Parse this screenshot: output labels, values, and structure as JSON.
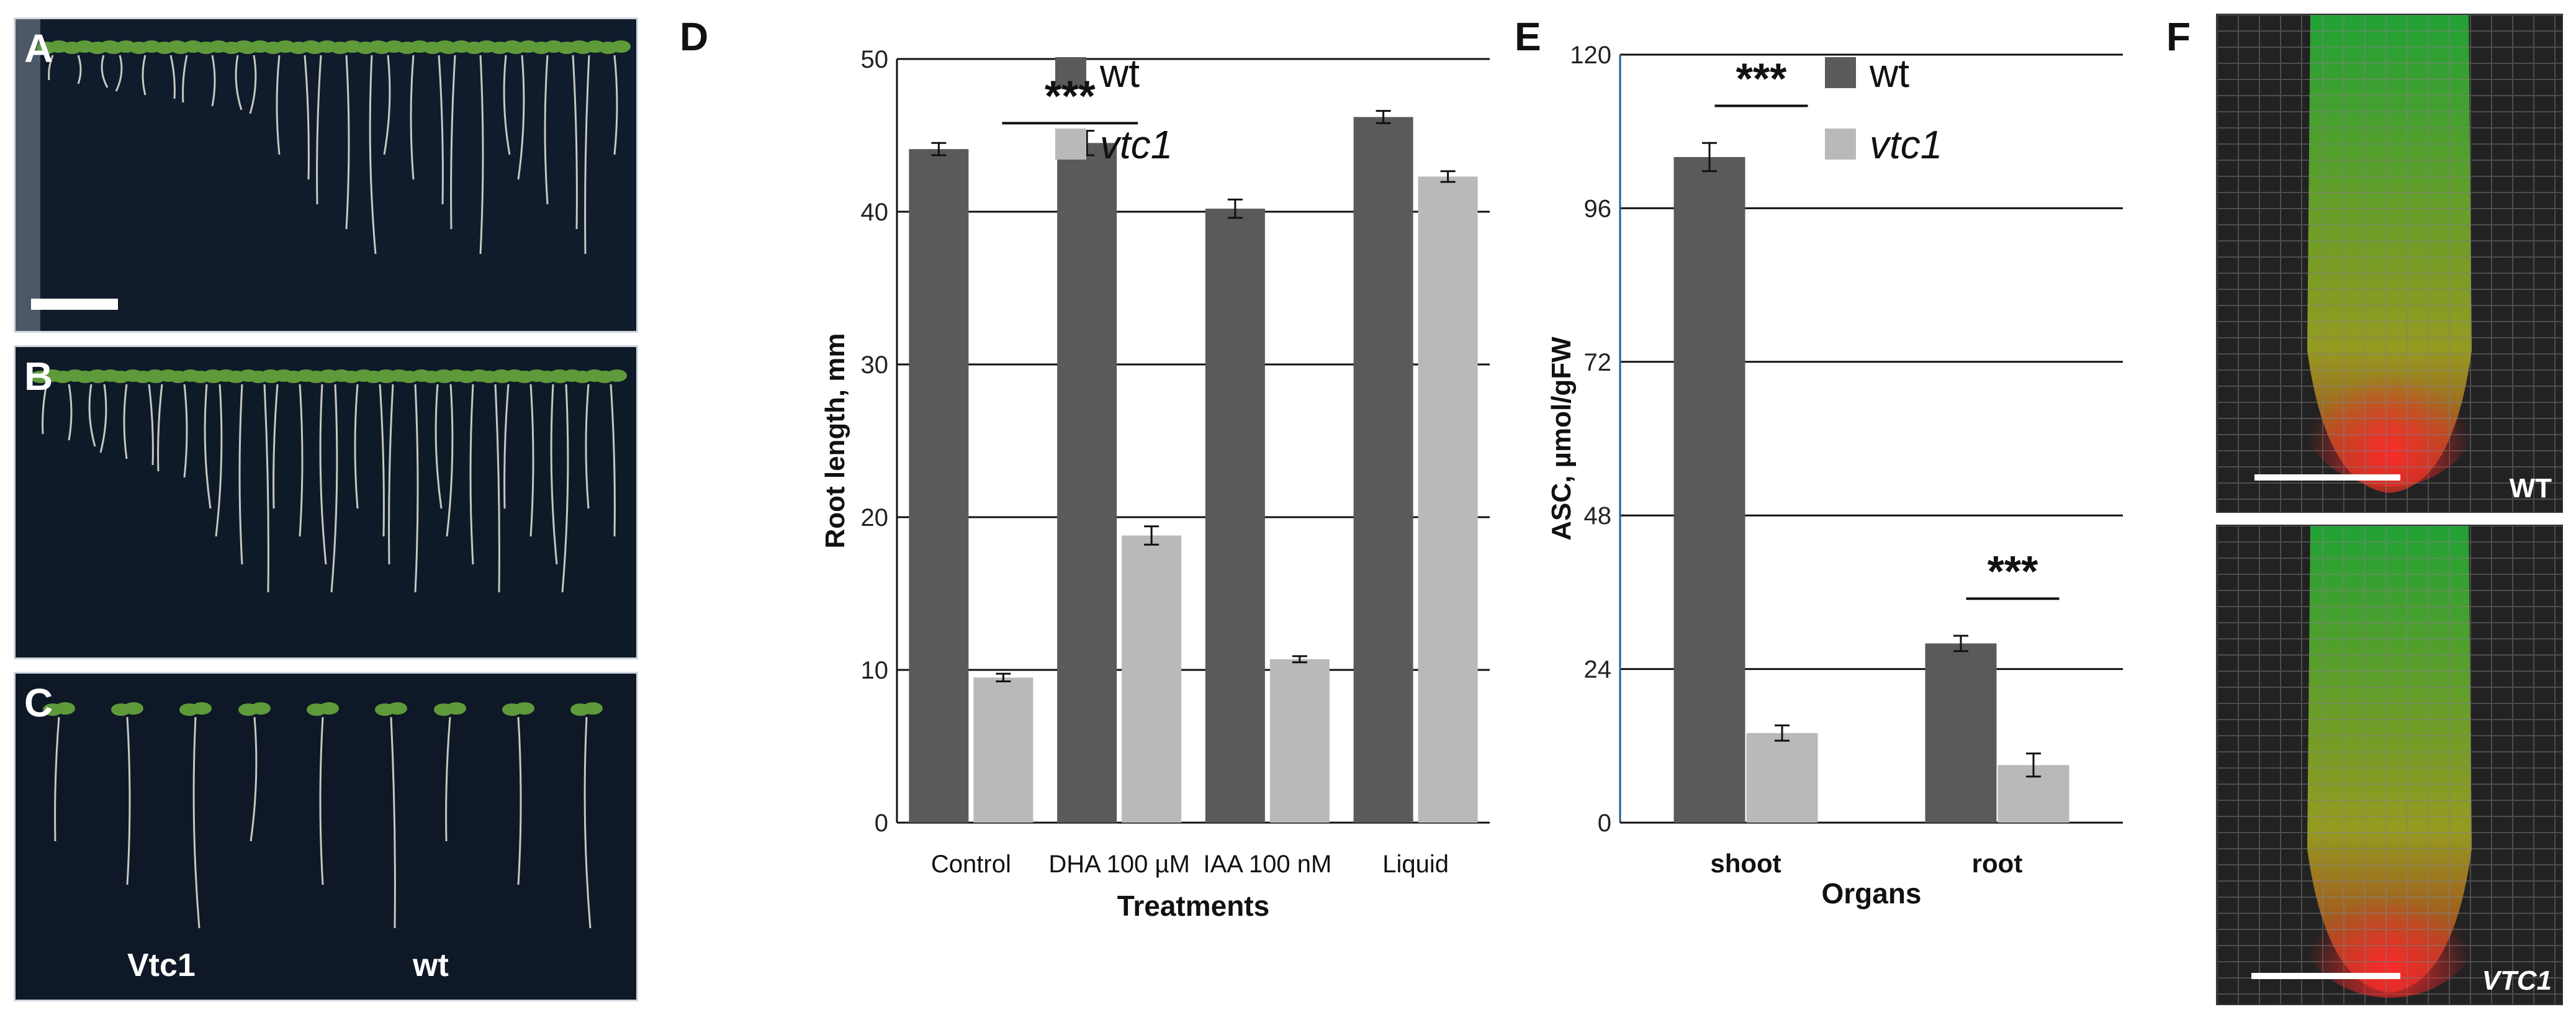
{
  "panels": {
    "A": "A",
    "B": "B",
    "C": "C",
    "D": "D",
    "E": "E",
    "F": "F"
  },
  "photo_labels": {
    "vtc1": "Vtc1",
    "wt": "wt"
  },
  "micro_labels": {
    "top": "WT",
    "bottom": "VTC1"
  },
  "colors": {
    "wt": "#5a5a5a",
    "vtc1": "#b9b9b9",
    "grid": "#111111",
    "axis_e": "#1f5f8b",
    "seedling_leaf": "#5f9a3a",
    "root": "#e8e6dc",
    "green_fluor": "#1fb83a",
    "red_fluor": "#e02020",
    "yellow_fluor": "#e0c020"
  },
  "chart_data": [
    {
      "type": "bar",
      "panel": "D",
      "categories": [
        "Control",
        "DHA 100 µM",
        "IAA 100 nM",
        "Liquid"
      ],
      "series": [
        {
          "name": "wt",
          "values": [
            44.1,
            44.5,
            40.2,
            46.2
          ],
          "errors": [
            0.4,
            0.8,
            0.6,
            0.4
          ]
        },
        {
          "name": "vtc1",
          "values": [
            9.5,
            18.8,
            10.7,
            42.3
          ],
          "errors": [
            0.25,
            0.6,
            0.2,
            0.35
          ]
        }
      ],
      "xlabel": "Treatments",
      "ylabel": "Root length, mm",
      "ylim": [
        0,
        50
      ],
      "yticks": [
        0,
        10,
        20,
        30,
        40,
        50
      ],
      "legend": [
        "wt",
        "vtc1"
      ],
      "annotations": [
        {
          "text": "***",
          "from": 0,
          "to": 1
        }
      ]
    },
    {
      "type": "bar",
      "panel": "E",
      "categories": [
        "shoot",
        "root"
      ],
      "series": [
        {
          "name": "wt",
          "values": [
            104,
            28
          ],
          "errors": [
            2.2,
            1.2
          ]
        },
        {
          "name": "vtc1",
          "values": [
            14,
            9
          ],
          "errors": [
            1.2,
            1.8
          ]
        }
      ],
      "xlabel": "Organs",
      "ylabel": "ASC, µmol/gFW",
      "ylim": [
        0,
        120
      ],
      "yticks": [
        0,
        24,
        48,
        72,
        96,
        120
      ],
      "legend": [
        "wt",
        "vtc1"
      ],
      "annotations": [
        {
          "text": "***",
          "group": 0
        },
        {
          "text": "***",
          "group": 1
        }
      ]
    }
  ]
}
